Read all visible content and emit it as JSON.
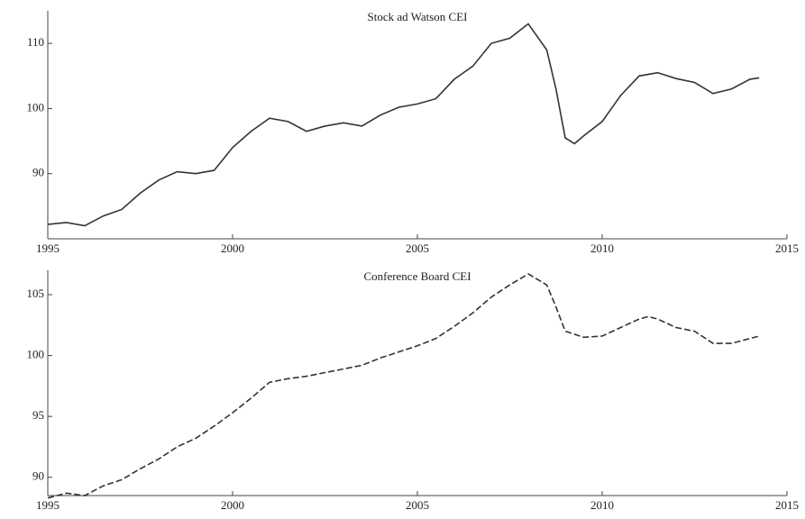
{
  "chart_data": [
    {
      "type": "line",
      "title": "Stock ad Watson CEI",
      "line_style": "solid",
      "color": "#333333",
      "x": [
        1995,
        1995.5,
        1996,
        1996.5,
        1997,
        1997.5,
        1998,
        1998.5,
        1999,
        1999.5,
        2000,
        2000.5,
        2001,
        2001.5,
        2002,
        2002.5,
        2003,
        2003.5,
        2004,
        2004.5,
        2005,
        2005.5,
        2006,
        2006.5,
        2007,
        2007.5,
        2008,
        2008.5,
        2008.75,
        2009,
        2009.25,
        2009.5,
        2010,
        2010.5,
        2011,
        2011.5,
        2012,
        2012.5,
        2013,
        2013.5,
        2014,
        2014.25
      ],
      "series": [
        {
          "name": "Stock ad Watson CEI",
          "color": "#333333",
          "values": [
            82.2,
            82.5,
            82.0,
            83.5,
            84.5,
            87,
            89,
            90.3,
            90,
            90.5,
            94,
            96.5,
            98.5,
            98,
            96.5,
            97.3,
            97.8,
            97.3,
            99,
            100.2,
            100.7,
            101.5,
            104.5,
            106.5,
            110,
            110.8,
            113,
            109,
            103,
            95.5,
            94.6,
            95.8,
            98,
            102,
            105,
            105.5,
            104.6,
            104,
            102.3,
            103,
            104.5,
            104.7
          ]
        }
      ],
      "xlim": [
        1995,
        2015
      ],
      "xticks": [
        1995,
        2000,
        2005,
        2010,
        2015
      ],
      "ylim": [
        80,
        115
      ],
      "yticks": [
        90,
        100,
        110
      ]
    },
    {
      "type": "line",
      "title": "Conference Board CEI",
      "line_style": "dashed",
      "color": "#333333",
      "x": [
        1995,
        1995.5,
        1996,
        1996.5,
        1997,
        1997.5,
        1998,
        1998.5,
        1999,
        1999.5,
        2000,
        2000.5,
        2001,
        2001.5,
        2002,
        2002.5,
        2003,
        2003.5,
        2004,
        2004.5,
        2005,
        2005.5,
        2006,
        2006.5,
        2007,
        2007.5,
        2008,
        2008.5,
        2008.75,
        2009,
        2009.5,
        2010,
        2010.5,
        2011,
        2011.25,
        2011.5,
        2012,
        2012.5,
        2013,
        2013.5,
        2014,
        2014.25
      ],
      "series": [
        {
          "name": "Conference Board CEI",
          "color": "#333333",
          "values": [
            88.3,
            88.7,
            88.5,
            89.3,
            89.8,
            90.7,
            91.5,
            92.5,
            93.2,
            94.2,
            95.3,
            96.5,
            97.8,
            98.1,
            98.3,
            98.6,
            98.9,
            99.2,
            99.8,
            100.3,
            100.8,
            101.4,
            102.4,
            103.5,
            104.8,
            105.8,
            106.7,
            105.8,
            104,
            102,
            101.5,
            101.6,
            102.3,
            103,
            103.2,
            103,
            102.3,
            102,
            101,
            101,
            101.4,
            101.6
          ]
        }
      ],
      "xlim": [
        1995,
        2015
      ],
      "xticks": [
        1995,
        2000,
        2005,
        2010,
        2015
      ],
      "ylim": [
        88.5,
        107
      ],
      "yticks": [
        90,
        95,
        100,
        105
      ]
    }
  ]
}
